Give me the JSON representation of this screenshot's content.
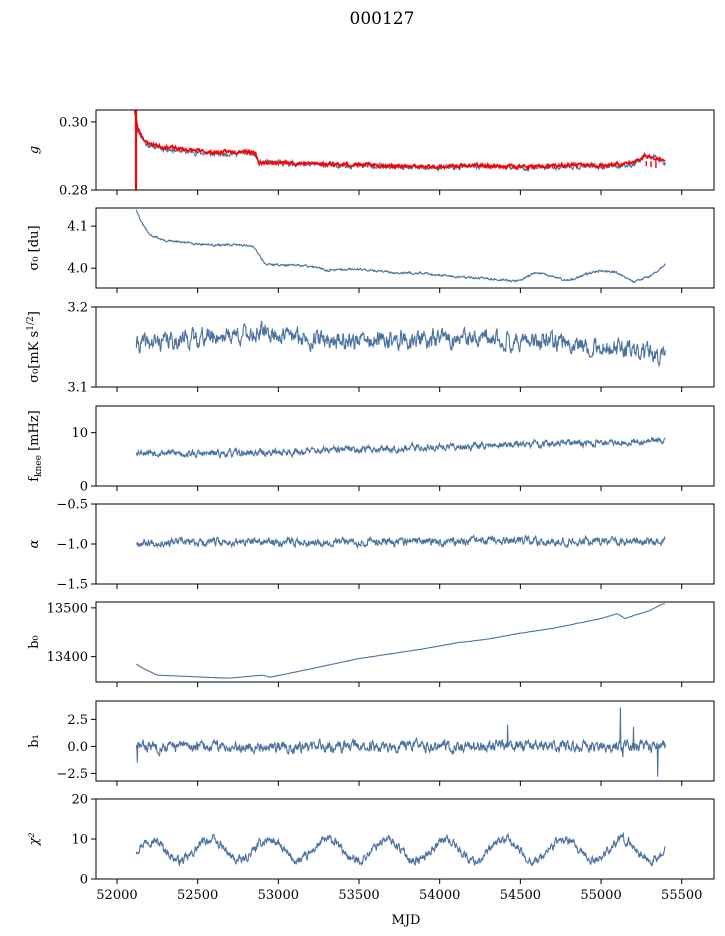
{
  "title": "000127",
  "xlabel": "MJD",
  "colors": {
    "series": "#4c72a0",
    "fit": "#ff0000"
  },
  "x_axis": {
    "range": [
      51870,
      55700
    ],
    "ticks": [
      52000,
      52500,
      53000,
      53500,
      54000,
      54500,
      55000,
      55500
    ],
    "tick_labels": [
      "52000",
      "52500",
      "53000",
      "53500",
      "54000",
      "54500",
      "55000",
      "55500"
    ]
  },
  "chart_data": [
    {
      "type": "line",
      "ylabel": "g",
      "ylim": [
        0.28,
        0.3035
      ],
      "yticks": [
        0.28,
        0.3
      ],
      "ytick_labels": [
        "0.28",
        "0.30"
      ],
      "series": [
        {
          "color": "#4c72a0",
          "kind": "noise",
          "amp": 0.0006,
          "seed": 11,
          "x_start": 52120,
          "x_end": 55400,
          "x": [
            52120,
            52130,
            52180,
            52250,
            52400,
            52600,
            52800,
            52860,
            52880,
            53000,
            53200,
            53400,
            53600,
            53800,
            54000,
            54200,
            54400,
            54600,
            54800,
            55000,
            55200,
            55280,
            55350,
            55400
          ],
          "y": [
            0.299,
            0.2975,
            0.2935,
            0.2925,
            0.2915,
            0.2905,
            0.291,
            0.29,
            0.288,
            0.288,
            0.2875,
            0.2873,
            0.287,
            0.2865,
            0.2865,
            0.287,
            0.2868,
            0.2865,
            0.287,
            0.2868,
            0.2875,
            0.29,
            0.2895,
            0.288
          ]
        },
        {
          "color": "#ff0000",
          "kind": "fit",
          "amp": 0.0004,
          "seed": 23,
          "x_start": 52110,
          "x_end": 55400,
          "x": [
            52110,
            52115,
            52125,
            52130,
            52180,
            52250,
            52400,
            52600,
            52800,
            52860,
            52880,
            53000,
            53200,
            53400,
            53600,
            53800,
            54000,
            54200,
            54400,
            54600,
            54800,
            55000,
            55200,
            55280,
            55330,
            55400
          ],
          "y": [
            0.3035,
            0.302,
            0.299,
            0.298,
            0.294,
            0.293,
            0.292,
            0.291,
            0.2915,
            0.2905,
            0.288,
            0.288,
            0.2878,
            0.2875,
            0.2873,
            0.2868,
            0.2868,
            0.2872,
            0.287,
            0.2868,
            0.2873,
            0.2872,
            0.288,
            0.29,
            0.2895,
            0.2885
          ]
        }
      ]
    },
    {
      "type": "line",
      "ylabel": "σ₀ [du]",
      "ylim": [
        3.953,
        4.143
      ],
      "yticks": [
        4.0,
        4.1
      ],
      "ytick_labels": [
        "4.0",
        "4.1"
      ],
      "series": [
        {
          "color": "#4c72a0",
          "kind": "noise",
          "amp": 0.002,
          "seed": 31,
          "x_start": 52120,
          "x_end": 55400,
          "x": [
            52120,
            52150,
            52200,
            52300,
            52450,
            52600,
            52800,
            52850,
            52920,
            53000,
            53200,
            53300,
            53500,
            53700,
            53900,
            54100,
            54300,
            54450,
            54500,
            54600,
            54800,
            54900,
            55000,
            55100,
            55200,
            55300,
            55400
          ],
          "y": [
            4.14,
            4.11,
            4.08,
            4.065,
            4.06,
            4.055,
            4.055,
            4.05,
            4.01,
            4.008,
            4.005,
            3.995,
            3.998,
            3.99,
            3.988,
            3.98,
            3.975,
            3.97,
            3.972,
            3.99,
            3.97,
            3.985,
            3.995,
            3.99,
            3.968,
            3.98,
            4.01
          ]
        }
      ]
    },
    {
      "type": "line",
      "ylabel": "σ₀[mK s^(1/2)]",
      "ylim": [
        3.1,
        3.2
      ],
      "yticks": [
        3.1,
        3.2
      ],
      "ytick_labels": [
        "3.1",
        "3.2"
      ],
      "series": [
        {
          "color": "#4c72a0",
          "kind": "noise",
          "amp": 0.009,
          "seed": 41,
          "x_start": 52120,
          "x_end": 55400,
          "x": [
            52120,
            52500,
            52900,
            53200,
            53600,
            54000,
            54400,
            54800,
            55000,
            55200,
            55400
          ],
          "y": [
            3.153,
            3.162,
            3.168,
            3.16,
            3.157,
            3.16,
            3.158,
            3.155,
            3.15,
            3.145,
            3.138
          ]
        }
      ]
    },
    {
      "type": "line",
      "ylabel": "f_knee [mHz]",
      "ylim": [
        0,
        15
      ],
      "yticks": [
        0,
        10
      ],
      "ytick_labels": [
        "0",
        "10"
      ],
      "series": [
        {
          "color": "#4c72a0",
          "kind": "noise",
          "amp": 0.55,
          "seed": 53,
          "x_start": 52120,
          "x_end": 55400,
          "x": [
            52120,
            52500,
            53000,
            53500,
            54000,
            54500,
            55000,
            55400
          ],
          "y": [
            6.5,
            6.0,
            6.3,
            6.9,
            7.3,
            7.8,
            8.1,
            8.6
          ]
        }
      ]
    },
    {
      "type": "line",
      "ylabel": "α",
      "ylim": [
        -1.5,
        -0.5
      ],
      "yticks": [
        -1.5,
        -1.0,
        -0.5
      ],
      "ytick_labels": [
        "−1.5",
        "−1.0",
        "−0.5"
      ],
      "series": [
        {
          "color": "#4c72a0",
          "kind": "noise",
          "amp": 0.04,
          "seed": 67,
          "x_start": 52120,
          "x_end": 55400,
          "x": [
            52120,
            55400
          ],
          "y": [
            -0.98,
            -0.96
          ]
        }
      ]
    },
    {
      "type": "line",
      "ylabel": "b₀",
      "ylim": [
        13348,
        13512
      ],
      "yticks": [
        13400,
        13500
      ],
      "ytick_labels": [
        "13400",
        "13500"
      ],
      "series": [
        {
          "color": "#4c72a0",
          "kind": "smooth",
          "amp": 0.6,
          "seed": 71,
          "x_start": 52120,
          "x_end": 55400,
          "x": [
            52120,
            52150,
            52250,
            52400,
            52600,
            52700,
            52900,
            52950,
            53100,
            53300,
            53500,
            53700,
            53900,
            54100,
            54300,
            54500,
            54700,
            54850,
            55000,
            55100,
            55150,
            55200,
            55300,
            55380
          ],
          "y": [
            13385,
            13378,
            13362,
            13360,
            13357,
            13356,
            13362,
            13358,
            13368,
            13382,
            13396,
            13406,
            13416,
            13428,
            13436,
            13448,
            13458,
            13468,
            13478,
            13488,
            13478,
            13484,
            13494,
            13508
          ]
        }
      ]
    },
    {
      "type": "line",
      "ylabel": "b₁",
      "ylim": [
        -3.2,
        4.2
      ],
      "yticks": [
        -2.5,
        0.0,
        2.5
      ],
      "ytick_labels": [
        "−2.5",
        "0.0",
        "2.5"
      ],
      "series": [
        {
          "color": "#4c72a0",
          "kind": "noise",
          "amp": 0.42,
          "seed": 83,
          "x_start": 52120,
          "x_end": 55400,
          "x": [
            52120,
            55400
          ],
          "y": [
            0.0,
            0.0
          ],
          "spikes": [
            [
              52125,
              -1.5
            ],
            [
              54420,
              2.0
            ],
            [
              55120,
              3.6
            ],
            [
              55135,
              -1.0
            ],
            [
              55200,
              1.8
            ],
            [
              55350,
              -2.8
            ]
          ]
        }
      ]
    },
    {
      "type": "line",
      "ylabel": "χ²",
      "ylim": [
        0,
        20
      ],
      "yticks": [
        0,
        10,
        20
      ],
      "ytick_labels": [
        "0",
        "10",
        "20"
      ],
      "series": [
        {
          "color": "#4c72a0",
          "kind": "wave",
          "amp": 0.9,
          "seed": 97,
          "x_start": 52120,
          "x_end": 55400,
          "center": 7.2,
          "wave_amp": 2.6,
          "period": 365,
          "x": [
            52120,
            55400
          ],
          "y": [
            7.2,
            7.2
          ]
        }
      ]
    }
  ]
}
